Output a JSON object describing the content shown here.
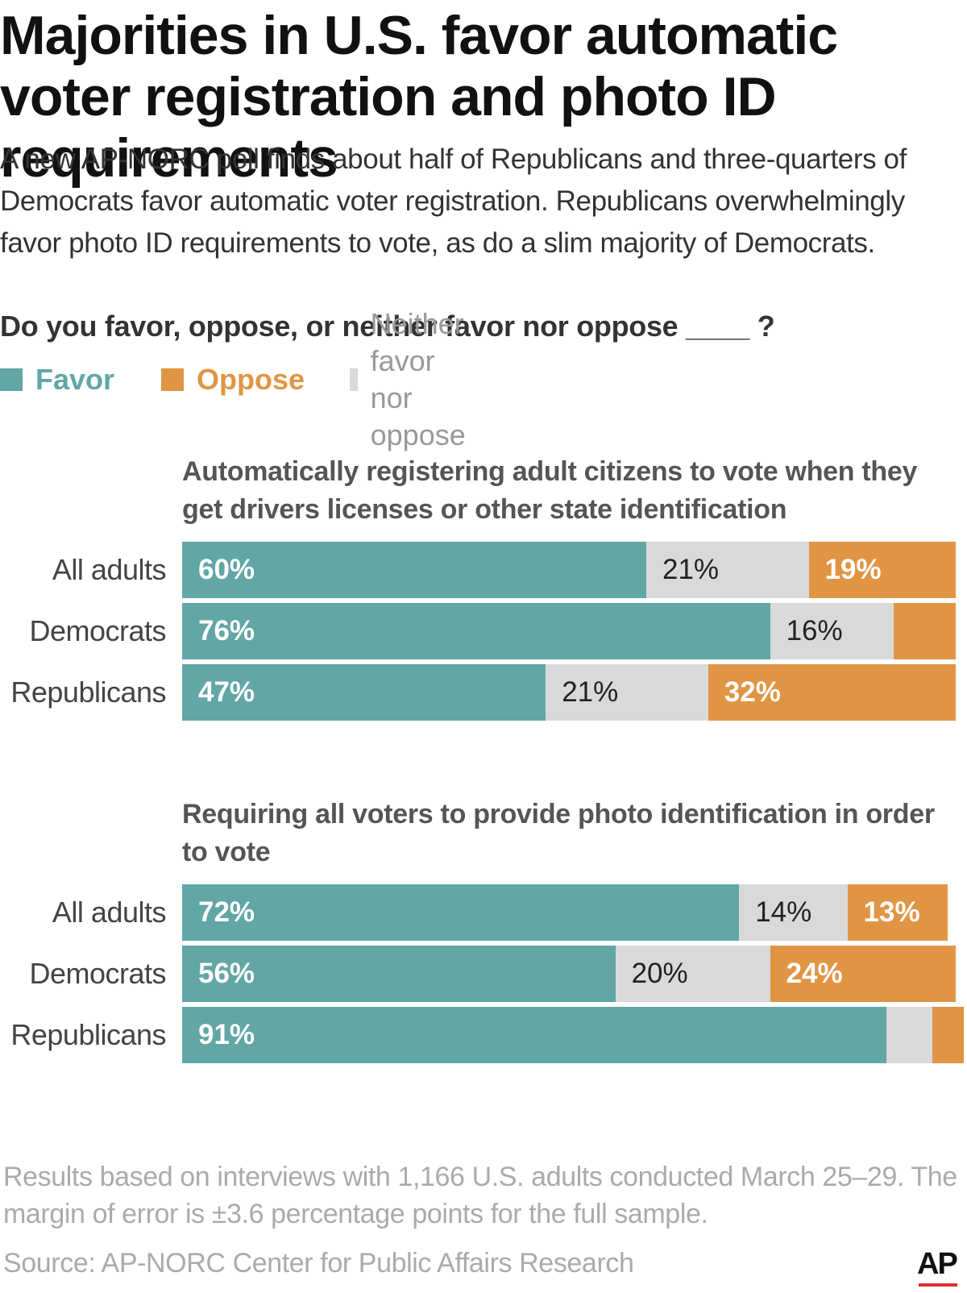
{
  "header": {
    "title": "Majorities in U.S. favor automatic voter registration and photo ID requirements",
    "subtitle": "A new AP-NORC poll finds about half of Republicans and three-quarters of Democrats favor automatic voter registration. Republicans overwhelmingly favor photo ID requirements to vote, as do a slim majority of Democrats."
  },
  "question": "Do you favor, oppose, or neither favor nor oppose ____ ?",
  "legend": [
    {
      "label": "Favor",
      "color": "#62a6a6"
    },
    {
      "label": "Oppose",
      "color": "#e09544"
    },
    {
      "label": "Neither favor nor oppose",
      "color": "#d9d9d9"
    }
  ],
  "chart_data": [
    {
      "type": "bar",
      "orientation": "horizontal",
      "stacked": true,
      "title": "Automatically registering adult citizens to vote when they get drivers licenses or other state identification",
      "categories": [
        "All adults",
        "Democrats",
        "Republicans"
      ],
      "series": [
        {
          "name": "Favor",
          "color": "#62a6a6",
          "values": [
            60,
            76,
            47
          ],
          "labels": [
            "60%",
            "76%",
            "47%"
          ]
        },
        {
          "name": "Neither favor nor oppose",
          "color": "#d9d9d9",
          "values": [
            21,
            16,
            21
          ],
          "labels": [
            "21%",
            "16%",
            "21%"
          ]
        },
        {
          "name": "Oppose",
          "color": "#e09544",
          "values": [
            19,
            8,
            32
          ],
          "labels": [
            "19%",
            "",
            "32%"
          ]
        }
      ]
    },
    {
      "type": "bar",
      "orientation": "horizontal",
      "stacked": true,
      "title": "Requiring all voters to provide photo identification in order to vote",
      "categories": [
        "All adults",
        "Democrats",
        "Republicans"
      ],
      "series": [
        {
          "name": "Favor",
          "color": "#62a6a6",
          "values": [
            72,
            56,
            91
          ],
          "labels": [
            "72%",
            "56%",
            "91%"
          ]
        },
        {
          "name": "Neither favor nor oppose",
          "color": "#d9d9d9",
          "values": [
            14,
            20,
            6
          ],
          "labels": [
            "14%",
            "20%",
            ""
          ]
        },
        {
          "name": "Oppose",
          "color": "#e09544",
          "values": [
            13,
            24,
            4
          ],
          "labels": [
            "13%",
            "24%",
            ""
          ]
        }
      ]
    }
  ],
  "footer": {
    "note": "Results based on interviews with 1,166 U.S. adults conducted March 25–29. The margin of error is ±3.6 percentage points for the full sample.",
    "source": "Source: AP-NORC Center for Public Affairs Research",
    "logo": "AP"
  }
}
